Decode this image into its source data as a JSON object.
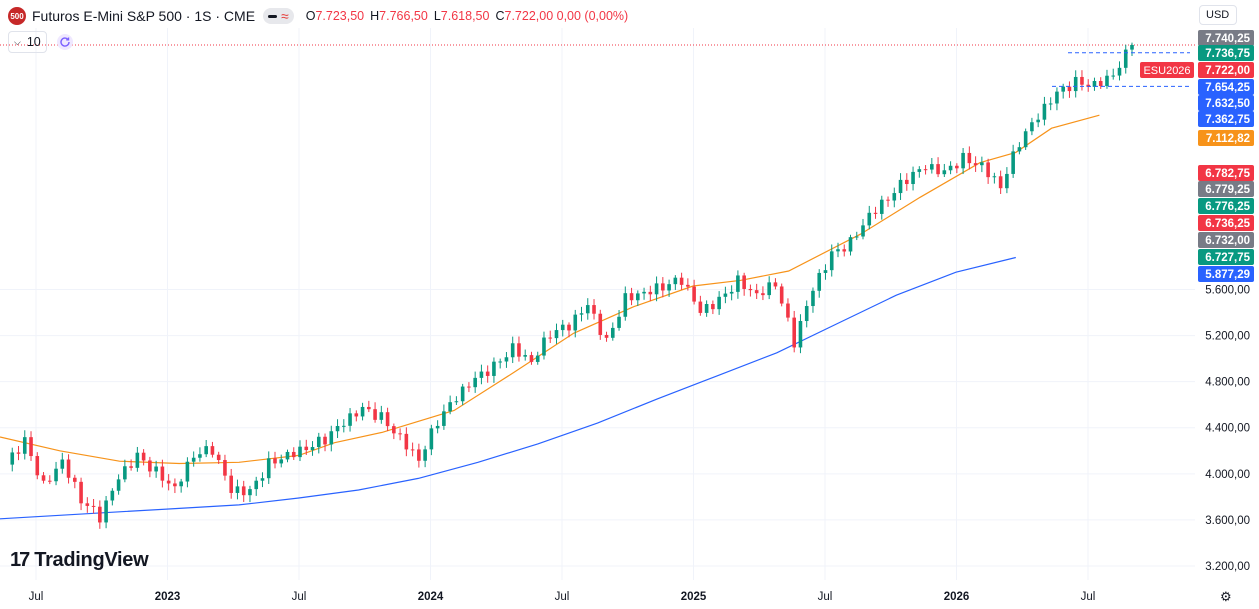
{
  "header": {
    "symbol_badge": "500",
    "symbol_name": "Futuros E-Mini S&P 500 · 1S · CME",
    "ohlc": [
      {
        "k": "O",
        "v": "7.723,50"
      },
      {
        "k": "H",
        "v": "7.766,50"
      },
      {
        "k": "L",
        "v": "7.618,50"
      },
      {
        "k": "C",
        "v": "7.722,00 0,00 (0,00%)"
      }
    ],
    "volume_label": "10",
    "currency": "USD"
  },
  "branding": {
    "logo_text": "TradingView"
  },
  "chart_data": {
    "type": "candlestick",
    "x_ticks": [
      "Jul",
      "2023",
      "Jul",
      "2024",
      "Jul",
      "2025",
      "Jul",
      "2026",
      "Jul"
    ],
    "y_ticks": [
      "5.600,00",
      "5.200,00",
      "4.800,00",
      "4.400,00",
      "4.000,00",
      "3.600,00",
      "3.200,00"
    ],
    "price_badges": [
      {
        "label": "7.740,25",
        "color": "#787b86"
      },
      {
        "label": "7.736,75",
        "color": "#089981"
      },
      {
        "label": "7.722,00",
        "color": "#f23645"
      },
      {
        "label": "7.654,25",
        "color": "#2962ff"
      },
      {
        "label": "7.632,50",
        "color": "#2962ff"
      },
      {
        "label": "7.362,75",
        "color": "#2962ff"
      },
      {
        "label": "7.112,82",
        "color": "#f7931a"
      },
      {
        "label": "6.782,75",
        "color": "#f23645"
      },
      {
        "label": "6.779,25",
        "color": "#787b86"
      },
      {
        "label": "6.776,25",
        "color": "#089981"
      },
      {
        "label": "6.736,25",
        "color": "#f23645"
      },
      {
        "label": "6.732,00",
        "color": "#787b86"
      },
      {
        "label": "6.727,75",
        "color": "#089981"
      },
      {
        "label": "5.877,29",
        "color": "#2962ff"
      }
    ],
    "contract_label": "ESU2026",
    "ma_series": [
      {
        "color": "#f7931a",
        "points": [
          [
            0,
            4320
          ],
          [
            0.05,
            4200
          ],
          [
            0.1,
            4110
          ],
          [
            0.15,
            4090
          ],
          [
            0.2,
            4100
          ],
          [
            0.25,
            4160
          ],
          [
            0.28,
            4270
          ],
          [
            0.32,
            4360
          ],
          [
            0.38,
            4550
          ],
          [
            0.43,
            4880
          ],
          [
            0.48,
            5220
          ],
          [
            0.53,
            5450
          ],
          [
            0.58,
            5630
          ],
          [
            0.62,
            5680
          ],
          [
            0.66,
            5760
          ],
          [
            0.72,
            6080
          ],
          [
            0.77,
            6400
          ],
          [
            0.82,
            6700
          ],
          [
            0.85,
            6790
          ],
          [
            0.88,
            7000
          ],
          [
            0.92,
            7112.82
          ]
        ]
      },
      {
        "color": "#2962ff",
        "points": [
          [
            0,
            3610
          ],
          [
            0.05,
            3640
          ],
          [
            0.1,
            3670
          ],
          [
            0.15,
            3700
          ],
          [
            0.2,
            3730
          ],
          [
            0.25,
            3790
          ],
          [
            0.3,
            3860
          ],
          [
            0.35,
            3960
          ],
          [
            0.4,
            4100
          ],
          [
            0.45,
            4260
          ],
          [
            0.5,
            4440
          ],
          [
            0.55,
            4650
          ],
          [
            0.6,
            4850
          ],
          [
            0.65,
            5050
          ],
          [
            0.7,
            5300
          ],
          [
            0.75,
            5550
          ],
          [
            0.8,
            5750
          ],
          [
            0.85,
            5877.29
          ]
        ]
      }
    ],
    "weekly_closes": [
      4080,
      4280,
      3900,
      4120,
      3780,
      3620,
      3960,
      4150,
      4020,
      3880,
      4170,
      4210,
      3850,
      3840,
      4090,
      4170,
      4230,
      4300,
      4440,
      4560,
      4490,
      4320,
      4130,
      4460,
      4660,
      4820,
      4930,
      5100,
      4980,
      5220,
      5280,
      5460,
      5140,
      5530,
      5580,
      5630,
      5680,
      5400,
      5500,
      5680,
      5560,
      5660,
      5140,
      5600,
      5900,
      6010,
      6250,
      6400,
      6560,
      6660,
      6610,
      6740,
      6680,
      6500,
      6880,
      7100,
      7300,
      7400,
      7380,
      7470,
      7722.0
    ]
  }
}
